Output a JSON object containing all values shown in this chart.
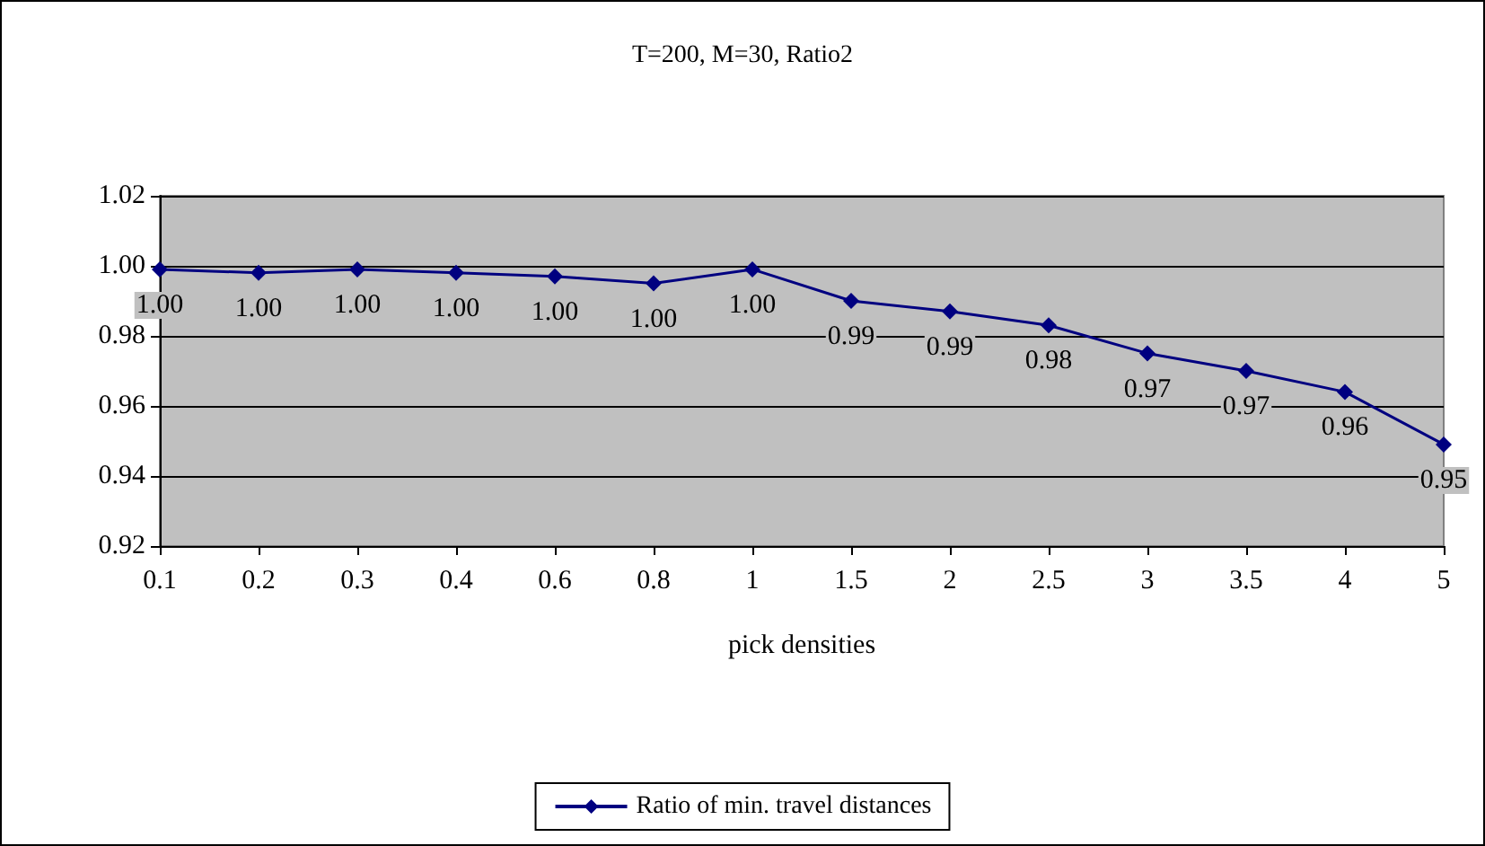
{
  "chart_data": {
    "type": "line",
    "title": "T=200, M=30, Ratio2",
    "xlabel": "pick densities",
    "categories": [
      "0.1",
      "0.2",
      "0.3",
      "0.4",
      "0.6",
      "0.8",
      "1",
      "1.5",
      "2",
      "2.5",
      "3",
      "3.5",
      "4",
      "5"
    ],
    "series": [
      {
        "name": "Ratio of min. travel distances",
        "color": "#000080",
        "values": [
          0.999,
          0.998,
          0.999,
          0.998,
          0.997,
          0.995,
          0.999,
          0.99,
          0.987,
          0.983,
          0.975,
          0.97,
          0.964,
          0.949
        ],
        "value_labels": [
          "1.00",
          "1.00",
          "1.00",
          "1.00",
          "1.00",
          "1.00",
          "1.00",
          "0.99",
          "0.99",
          "0.98",
          "0.97",
          "0.97",
          "0.96",
          "0.95"
        ]
      }
    ],
    "ylim": [
      0.92,
      1.02
    ],
    "yticks": [
      {
        "value": 0.92,
        "label": "0.92"
      },
      {
        "value": 0.94,
        "label": "0.94"
      },
      {
        "value": 0.96,
        "label": "0.96"
      },
      {
        "value": 0.98,
        "label": "0.98"
      },
      {
        "value": 1,
        "label": "1.00"
      },
      {
        "value": 1.02,
        "label": "1.02"
      }
    ],
    "grid": "y",
    "legend": "bottom",
    "marker": "diamond",
    "line_style": "solid"
  }
}
